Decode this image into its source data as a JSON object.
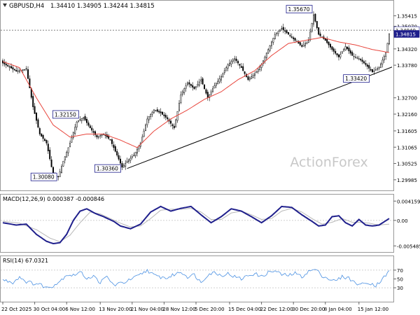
{
  "header": {
    "symbol": "GBPUSD,H4",
    "ohlc": "1.34410 1.34905 1.34244 1.34815"
  },
  "watermark": "ActionForex",
  "colors": {
    "candle": "#000000",
    "sma": "#e8453c",
    "trendline": "#000000",
    "macd_main": "#1f1f8c",
    "macd_signal": "#b8b8b8",
    "rsi": "#4a90e2",
    "grid": "#c0c0c0",
    "current_price_bg": "#1f1f8c"
  },
  "chart_data": [
    {
      "type": "candlestick",
      "panel": "price",
      "yrange": [
        1.2968,
        1.358
      ],
      "grid": true,
      "tick_labels": [
        "1.35415",
        "1.35070",
        "1.34320",
        "1.33780",
        "1.32700",
        "1.32160",
        "1.31605",
        "1.31065",
        "1.30525",
        "1.29985"
      ],
      "tick_values": [
        1.35415,
        1.3507,
        1.3432,
        1.3378,
        1.327,
        1.3216,
        1.31605,
        1.31065,
        1.30525,
        1.29985
      ],
      "current_prices": [
        {
          "label": "1.34940",
          "value": 1.3494
        },
        {
          "label": "1.34815",
          "value": 1.34815
        }
      ],
      "series_close_keypoints": [
        [
          0,
          1.3385
        ],
        [
          8,
          1.3358
        ],
        [
          14,
          1.3365
        ],
        [
          18,
          1.324
        ],
        [
          22,
          1.315
        ],
        [
          26,
          1.312
        ],
        [
          30,
          1.3015
        ],
        [
          33,
          1.3008
        ],
        [
          36,
          1.306
        ],
        [
          40,
          1.312
        ],
        [
          44,
          1.319
        ],
        [
          48,
          1.3205
        ],
        [
          52,
          1.317
        ],
        [
          56,
          1.314
        ],
        [
          60,
          1.315
        ],
        [
          64,
          1.313
        ],
        [
          68,
          1.308
        ],
        [
          71,
          1.304
        ],
        [
          74,
          1.306
        ],
        [
          78,
          1.308
        ],
        [
          82,
          1.312
        ],
        [
          86,
          1.32
        ],
        [
          90,
          1.323
        ],
        [
          94,
          1.322
        ],
        [
          98,
          1.32
        ],
        [
          102,
          1.317
        ],
        [
          106,
          1.328
        ],
        [
          110,
          1.332
        ],
        [
          114,
          1.33
        ],
        [
          118,
          1.333
        ],
        [
          122,
          1.327
        ],
        [
          126,
          1.331
        ],
        [
          130,
          1.334
        ],
        [
          134,
          1.338
        ],
        [
          138,
          1.34
        ],
        [
          142,
          1.337
        ],
        [
          146,
          1.333
        ],
        [
          150,
          1.335
        ],
        [
          154,
          1.338
        ],
        [
          158,
          1.343
        ],
        [
          162,
          1.348
        ],
        [
          166,
          1.35
        ],
        [
          170,
          1.348
        ],
        [
          174,
          1.346
        ],
        [
          178,
          1.344
        ],
        [
          182,
          1.346
        ],
        [
          185,
          1.3545
        ],
        [
          188,
          1.348
        ],
        [
          192,
          1.346
        ],
        [
          196,
          1.343
        ],
        [
          200,
          1.3405
        ],
        [
          204,
          1.344
        ],
        [
          208,
          1.341
        ],
        [
          212,
          1.34
        ],
        [
          216,
          1.338
        ],
        [
          220,
          1.3355
        ],
        [
          224,
          1.337
        ],
        [
          228,
          1.342
        ],
        [
          230,
          1.3481
        ]
      ],
      "sma_keypoints": [
        [
          0,
          1.339
        ],
        [
          10,
          1.337
        ],
        [
          20,
          1.327
        ],
        [
          30,
          1.318
        ],
        [
          40,
          1.314
        ],
        [
          50,
          1.315
        ],
        [
          60,
          1.315
        ],
        [
          70,
          1.313
        ],
        [
          80,
          1.3105
        ],
        [
          90,
          1.316
        ],
        [
          100,
          1.32
        ],
        [
          110,
          1.323
        ],
        [
          120,
          1.3265
        ],
        [
          130,
          1.329
        ],
        [
          140,
          1.333
        ],
        [
          150,
          1.336
        ],
        [
          160,
          1.341
        ],
        [
          170,
          1.345
        ],
        [
          180,
          1.346
        ],
        [
          190,
          1.347
        ],
        [
          200,
          1.3455
        ],
        [
          210,
          1.3445
        ],
        [
          220,
          1.343
        ],
        [
          230,
          1.342
        ]
      ],
      "annotations": [
        {
          "label": "1.35670",
          "index": 185,
          "value": 1.3567,
          "position": "left"
        },
        {
          "label": "1.32150",
          "index": 46,
          "value": 1.3215,
          "position": "left"
        },
        {
          "label": "1.30360",
          "index": 71,
          "value": 1.3036,
          "position": "left"
        },
        {
          "label": "1.30080",
          "index": 33,
          "value": 1.3008,
          "position": "left"
        },
        {
          "label": "1.33420",
          "index": 219,
          "value": 1.3342,
          "position": "left"
        }
      ],
      "trendline": [
        [
          74,
          1.3036
        ],
        [
          232,
          1.3372
        ]
      ]
    },
    {
      "type": "line",
      "panel": "macd",
      "title": "MACD(12,26,9) 0.000387 -0.000846",
      "yrange": [
        -0.0062,
        0.0048
      ],
      "tick_labels": [
        "0.004159",
        "0.00",
        "-0.005485"
      ],
      "tick_values": [
        0.004159,
        0.0,
        -0.005485
      ],
      "series": [
        {
          "name": "main",
          "keypoints": [
            [
              0,
              -0.0005
            ],
            [
              8,
              -0.001
            ],
            [
              14,
              -0.0008
            ],
            [
              20,
              -0.003
            ],
            [
              26,
              -0.0045
            ],
            [
              30,
              -0.005
            ],
            [
              34,
              -0.0048
            ],
            [
              38,
              -0.003
            ],
            [
              42,
              0.0
            ],
            [
              46,
              0.002
            ],
            [
              50,
              0.0025
            ],
            [
              55,
              0.0015
            ],
            [
              60,
              0.0008
            ],
            [
              66,
              -0.0002
            ],
            [
              70,
              -0.0012
            ],
            [
              76,
              -0.0018
            ],
            [
              82,
              -0.0008
            ],
            [
              88,
              0.0018
            ],
            [
              94,
              0.003
            ],
            [
              100,
              0.002
            ],
            [
              106,
              0.0026
            ],
            [
              112,
              0.003
            ],
            [
              118,
              0.0012
            ],
            [
              124,
              -0.0005
            ],
            [
              130,
              0.0008
            ],
            [
              136,
              0.0025
            ],
            [
              142,
              0.002
            ],
            [
              148,
              0.0008
            ],
            [
              154,
              -0.0005
            ],
            [
              160,
              0.001
            ],
            [
              166,
              0.003
            ],
            [
              172,
              0.0028
            ],
            [
              178,
              0.0012
            ],
            [
              184,
              -0.0002
            ],
            [
              188,
              -0.0012
            ],
            [
              192,
              -0.001
            ],
            [
              196,
              0.0008
            ],
            [
              200,
              0.001
            ],
            [
              204,
              -0.0005
            ],
            [
              208,
              -0.0012
            ],
            [
              212,
              0.0002
            ],
            [
              216,
              -0.001
            ],
            [
              220,
              -0.0012
            ],
            [
              224,
              -0.001
            ],
            [
              230,
              0.0004
            ]
          ]
        },
        {
          "name": "signal",
          "keypoints": [
            [
              0,
              -0.0002
            ],
            [
              10,
              -0.0006
            ],
            [
              20,
              -0.002
            ],
            [
              28,
              -0.0038
            ],
            [
              34,
              -0.0046
            ],
            [
              40,
              -0.0032
            ],
            [
              46,
              -0.0005
            ],
            [
              52,
              0.0018
            ],
            [
              58,
              0.0014
            ],
            [
              64,
              0.0004
            ],
            [
              70,
              -0.0006
            ],
            [
              76,
              -0.0014
            ],
            [
              82,
              -0.0012
            ],
            [
              88,
              0.0004
            ],
            [
              94,
              0.0022
            ],
            [
              100,
              0.0024
            ],
            [
              106,
              0.0024
            ],
            [
              112,
              0.0026
            ],
            [
              118,
              0.0018
            ],
            [
              124,
              0.0002
            ],
            [
              130,
              0.0002
            ],
            [
              136,
              0.0016
            ],
            [
              142,
              0.002
            ],
            [
              148,
              0.0012
            ],
            [
              154,
              0.0002
            ],
            [
              160,
              0.0004
            ],
            [
              166,
              0.002
            ],
            [
              172,
              0.0026
            ],
            [
              178,
              0.0018
            ],
            [
              184,
              0.0004
            ],
            [
              190,
              -0.0008
            ],
            [
              196,
              -0.0004
            ],
            [
              202,
              0.0004
            ],
            [
              208,
              -0.0004
            ],
            [
              212,
              -0.0004
            ],
            [
              218,
              -0.0006
            ],
            [
              224,
              -0.001
            ],
            [
              230,
              -0.0008
            ]
          ]
        }
      ]
    },
    {
      "type": "line",
      "panel": "rsi",
      "title": "RSI(14) 67.0321",
      "yrange": [
        0,
        100
      ],
      "tick_labels": [
        "70",
        "50",
        "30"
      ],
      "tick_values": [
        70,
        50,
        30
      ],
      "series": [
        {
          "name": "rsi",
          "keypoints": [
            [
              0,
              48
            ],
            [
              6,
              42
            ],
            [
              10,
              55
            ],
            [
              14,
              44
            ],
            [
              18,
              40
            ],
            [
              22,
              38
            ],
            [
              26,
              30
            ],
            [
              30,
              35
            ],
            [
              34,
              45
            ],
            [
              38,
              60
            ],
            [
              42,
              58
            ],
            [
              46,
              66
            ],
            [
              50,
              52
            ],
            [
              54,
              56
            ],
            [
              58,
              42
            ],
            [
              62,
              55
            ],
            [
              66,
              36
            ],
            [
              70,
              40
            ],
            [
              74,
              45
            ],
            [
              78,
              52
            ],
            [
              82,
              60
            ],
            [
              86,
              70
            ],
            [
              90,
              58
            ],
            [
              94,
              54
            ],
            [
              98,
              52
            ],
            [
              102,
              60
            ],
            [
              106,
              66
            ],
            [
              110,
              55
            ],
            [
              114,
              60
            ],
            [
              118,
              42
            ],
            [
              122,
              60
            ],
            [
              126,
              65
            ],
            [
              130,
              58
            ],
            [
              134,
              62
            ],
            [
              138,
              55
            ],
            [
              142,
              50
            ],
            [
              146,
              58
            ],
            [
              150,
              62
            ],
            [
              154,
              55
            ],
            [
              158,
              65
            ],
            [
              162,
              68
            ],
            [
              166,
              60
            ],
            [
              170,
              58
            ],
            [
              174,
              63
            ],
            [
              178,
              55
            ],
            [
              182,
              67
            ],
            [
              186,
              72
            ],
            [
              190,
              58
            ],
            [
              194,
              50
            ],
            [
              198,
              45
            ],
            [
              202,
              55
            ],
            [
              206,
              52
            ],
            [
              210,
              40
            ],
            [
              214,
              38
            ],
            [
              218,
              42
            ],
            [
              222,
              35
            ],
            [
              226,
              50
            ],
            [
              230,
              67
            ]
          ]
        }
      ]
    }
  ],
  "x_axis": {
    "count": 231,
    "labels": [
      "22 Oct 2025",
      "30 Oct 04:00",
      "6 Nov 12:00",
      "13 Nov 20:00",
      "21 Nov 04:00",
      "28 Nov 12:00",
      "5 Dec 20:00",
      "15 Dec 04:00",
      "22 Dec 12:00",
      "30 Dec 20:00",
      "8 Jan 04:00",
      "15 Jan 12:00"
    ],
    "label_indices": [
      0,
      19,
      38,
      58,
      77,
      96,
      115,
      135,
      154,
      173,
      192,
      212
    ]
  }
}
